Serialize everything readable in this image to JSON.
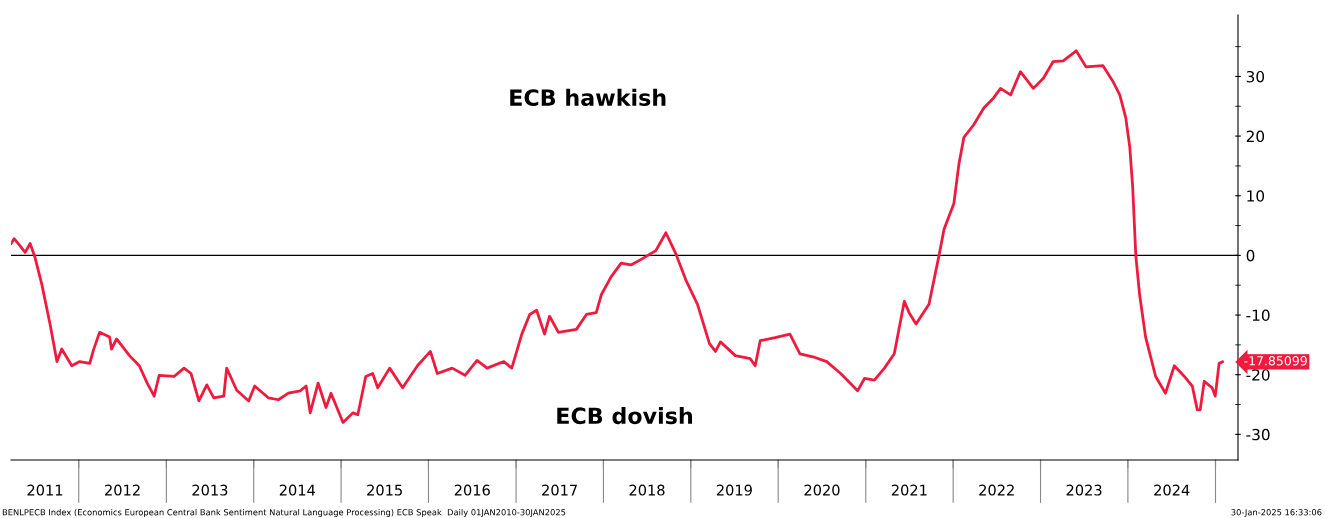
{
  "chart_data": {
    "type": "line",
    "annotations": [
      "ECB hawkish",
      "ECB dovish",
      "BENLPECB Index (Economics European Central Bank Sentiment Natural Language Processing) ECB Speak  Daily 01JAN2010-30JAN2025",
      "30-Jan-2025 16:33:06"
    ],
    "x": [
      "2011-03-25",
      "2011-04-06",
      "2011-05-01",
      "2011-05-22",
      "2011-06-12",
      "2011-07-02",
      "2011-07-31",
      "2011-09-03",
      "2011-10-02",
      "2011-10-22",
      "2011-12-03",
      "2012-01-05",
      "2012-02-16",
      "2012-03-03",
      "2012-03-28",
      "2012-05-09",
      "2012-05-17",
      "2012-06-07",
      "2012-07-31",
      "2012-09-10",
      "2012-10-13",
      "2012-11-11",
      "2012-12-02",
      "2013-02-02",
      "2013-03-16",
      "2013-04-14",
      "2013-05-17",
      "2013-06-19",
      "2013-07-18",
      "2013-08-29",
      "2013-09-10",
      "2013-10-22",
      "2013-12-11",
      "2014-01-05",
      "2014-03-04",
      "2014-04-14",
      "2014-05-26",
      "2014-07-14",
      "2014-08-08",
      "2014-08-25",
      "2014-09-27",
      "2014-10-30",
      "2014-11-20",
      "2015-01-09",
      "2015-02-19",
      "2015-03-12",
      "2015-04-14",
      "2015-05-13",
      "2015-06-03",
      "2015-07-23",
      "2015-09-15",
      "2015-11-16",
      "2016-01-09",
      "2016-02-07",
      "2016-04-09",
      "2016-06-02",
      "2016-07-22",
      "2016-09-02",
      "2016-11-11",
      "2016-12-14",
      "2017-01-25",
      "2017-02-27",
      "2017-03-28",
      "2017-04-30",
      "2017-05-21",
      "2017-06-27",
      "2017-09-10",
      "2017-10-22",
      "2017-12-02",
      "2017-12-23",
      "2018-02-02",
      "2018-03-16",
      "2018-04-26",
      "2018-06-15",
      "2018-08-08",
      "2018-09-19",
      "2018-10-30",
      "2018-12-11",
      "2019-01-29",
      "2019-03-20",
      "2019-04-14",
      "2019-05-05",
      "2019-07-06",
      "2019-09-06",
      "2019-09-27",
      "2019-10-18",
      "2019-12-19",
      "2020-02-19",
      "2020-04-01",
      "2020-05-25",
      "2020-07-22",
      "2020-09-18",
      "2020-11-28",
      "2020-12-27",
      "2021-02-06",
      "2021-03-20",
      "2021-04-30",
      "2021-06-11",
      "2021-07-01",
      "2021-07-30",
      "2021-09-22",
      "2021-11-03",
      "2021-11-24",
      "2022-01-04",
      "2022-01-25",
      "2022-02-15",
      "2022-03-28",
      "2022-05-09",
      "2022-06-19",
      "2022-07-18",
      "2022-08-29",
      "2022-10-09",
      "2022-12-02",
      "2023-01-13",
      "2023-02-23",
      "2023-04-06",
      "2023-05-30",
      "2023-07-10",
      "2023-09-19",
      "2023-10-30",
      "2023-11-28",
      "2023-12-23",
      "2024-01-09",
      "2024-01-21",
      "2024-02-03",
      "2024-02-19",
      "2024-03-15",
      "2024-04-26",
      "2024-06-06",
      "2024-07-13",
      "2024-08-24",
      "2024-09-26",
      "2024-10-17",
      "2024-10-29",
      "2024-11-15",
      "2024-12-18",
      "2024-12-31",
      "2025-01-16",
      "2025-01-30"
    ],
    "series": [
      {
        "color": "#ee1b3e",
        "values": [
          2.0,
          2.8,
          1.6,
          0.5,
          2.0,
          -0.3,
          -4.9,
          -11.5,
          -17.8,
          -15.7,
          -18.5,
          -17.8,
          -18.1,
          -15.8,
          -12.9,
          -13.7,
          -15.7,
          -14.0,
          -16.8,
          -18.5,
          -21.4,
          -23.6,
          -20.1,
          -20.3,
          -18.9,
          -19.8,
          -24.4,
          -21.7,
          -23.9,
          -23.6,
          -18.9,
          -22.6,
          -24.4,
          -21.9,
          -23.9,
          -24.2,
          -23.1,
          -22.7,
          -21.9,
          -26.4,
          -21.4,
          -25.5,
          -23.1,
          -28.0,
          -26.4,
          -26.7,
          -20.3,
          -19.8,
          -22.2,
          -18.9,
          -22.2,
          -18.5,
          -16.1,
          -19.8,
          -18.9,
          -20.1,
          -17.6,
          -18.9,
          -17.8,
          -18.9,
          -13.2,
          -9.9,
          -9.2,
          -13.2,
          -10.2,
          -12.9,
          -12.4,
          -9.9,
          -9.6,
          -6.6,
          -3.6,
          -1.3,
          -1.6,
          -0.5,
          0.8,
          3.8,
          0.3,
          -4.1,
          -8.2,
          -14.8,
          -16.1,
          -14.5,
          -16.8,
          -17.3,
          -18.5,
          -14.3,
          -13.8,
          -13.2,
          -16.5,
          -17.0,
          -17.8,
          -19.8,
          -22.7,
          -20.6,
          -20.9,
          -18.9,
          -16.5,
          -7.7,
          -9.6,
          -11.5,
          -8.2,
          0.0,
          4.4,
          8.7,
          15.3,
          19.8,
          21.9,
          24.7,
          26.4,
          28.0,
          26.9,
          30.8,
          28.0,
          29.7,
          32.5,
          32.6,
          34.3,
          31.6,
          31.8,
          29.2,
          26.9,
          23.1,
          18.1,
          11.5,
          0.0,
          -6.6,
          -13.7,
          -20.3,
          -23.1,
          -18.5,
          -20.3,
          -21.9,
          -25.9,
          -25.9,
          -21.1,
          -22.2,
          -23.6,
          -18.1,
          -17.85099
        ],
        "value_labels": [
          null,
          null,
          null,
          null,
          null,
          null,
          null,
          null,
          null,
          null,
          null,
          null,
          null,
          null,
          null,
          null,
          null,
          null,
          null,
          null,
          null,
          null,
          null,
          null,
          null,
          null,
          null,
          null,
          null,
          null,
          null,
          null,
          null,
          null,
          null,
          null,
          null,
          null,
          null,
          null,
          null,
          null,
          null,
          null,
          null,
          null,
          null,
          null,
          null,
          null,
          null,
          null,
          null,
          null,
          null,
          null,
          null,
          null,
          null,
          null,
          null,
          null,
          null,
          null,
          null,
          null,
          null,
          null,
          null,
          null,
          null,
          null,
          null,
          null,
          null,
          null,
          null,
          null,
          null,
          null,
          null,
          null,
          null,
          null,
          null,
          null,
          null,
          null,
          null,
          null,
          null,
          null,
          null,
          null,
          null,
          null,
          null,
          null,
          null,
          null,
          null,
          null,
          null,
          null,
          null,
          null,
          null,
          null,
          null,
          null,
          null,
          null,
          null,
          null,
          null,
          null,
          null,
          null,
          null,
          null,
          null,
          null,
          null,
          null,
          null,
          null,
          null,
          null,
          null,
          null,
          null,
          null,
          null,
          null,
          null,
          null,
          null,
          null,
          "-17.85099"
        ]
      }
    ],
    "xlim": [
      "2011-03-24",
      "2025-04-05"
    ],
    "xticks": [
      {
        "value": "2011-08-13",
        "label": "2011"
      },
      {
        "value": "2012-01-01",
        "label": null
      },
      {
        "value": "2012-07-02",
        "label": "2012"
      },
      {
        "value": "2013-01-01",
        "label": null
      },
      {
        "value": "2013-07-02",
        "label": "2013"
      },
      {
        "value": "2014-01-01",
        "label": null
      },
      {
        "value": "2014-07-02",
        "label": "2014"
      },
      {
        "value": "2015-01-01",
        "label": null
      },
      {
        "value": "2015-07-02",
        "label": "2015"
      },
      {
        "value": "2016-01-01",
        "label": null
      },
      {
        "value": "2016-07-02",
        "label": "2016"
      },
      {
        "value": "2017-01-01",
        "label": null
      },
      {
        "value": "2017-07-02",
        "label": "2017"
      },
      {
        "value": "2018-01-01",
        "label": null
      },
      {
        "value": "2018-07-02",
        "label": "2018"
      },
      {
        "value": "2019-01-01",
        "label": null
      },
      {
        "value": "2019-07-02",
        "label": "2019"
      },
      {
        "value": "2020-01-01",
        "label": null
      },
      {
        "value": "2020-07-02",
        "label": "2020"
      },
      {
        "value": "2021-01-01",
        "label": null
      },
      {
        "value": "2021-07-02",
        "label": "2021"
      },
      {
        "value": "2022-01-01",
        "label": null
      },
      {
        "value": "2022-07-02",
        "label": "2022"
      },
      {
        "value": "2023-01-01",
        "label": null
      },
      {
        "value": "2023-07-02",
        "label": "2023"
      },
      {
        "value": "2024-01-01",
        "label": null
      },
      {
        "value": "2024-07-02",
        "label": "2024"
      },
      {
        "value": "2025-01-01",
        "label": null
      }
    ],
    "ylim": [
      -34.3,
      40.3
    ],
    "yticks": [
      -30,
      {
        "value": -25,
        "label": null
      },
      -20,
      {
        "value": -15,
        "label": null
      },
      -10,
      {
        "value": -5,
        "label": null
      },
      0,
      {
        "value": 5,
        "label": null
      },
      10,
      {
        "value": 15,
        "label": null
      },
      20,
      {
        "value": 25,
        "label": null
      },
      30,
      {
        "value": 35,
        "label": null
      }
    ],
    "ref_lines": [
      {
        "axis": "y",
        "value": 0,
        "color": "#000000"
      }
    ]
  }
}
